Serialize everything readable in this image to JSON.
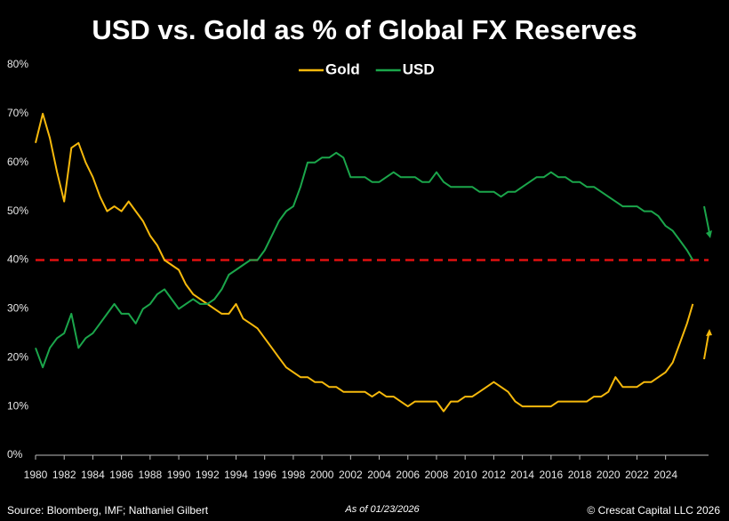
{
  "chart_data": {
    "type": "line",
    "title": "USD vs. Gold as % of Global FX Reserves",
    "x": [
      1980,
      1980.5,
      1981,
      1981.5,
      1982,
      1982.5,
      1983,
      1983.5,
      1984,
      1984.5,
      1985,
      1985.5,
      1986,
      1986.5,
      1987,
      1987.5,
      1988,
      1988.5,
      1989,
      1989.5,
      1990,
      1990.5,
      1991,
      1991.5,
      1992,
      1992.5,
      1993,
      1993.5,
      1994,
      1994.5,
      1995,
      1995.5,
      1996,
      1996.5,
      1997,
      1997.5,
      1998,
      1998.5,
      1999,
      1999.5,
      2000,
      2000.5,
      2001,
      2001.5,
      2002,
      2002.5,
      2003,
      2003.5,
      2004,
      2004.5,
      2005,
      2005.5,
      2006,
      2006.5,
      2007,
      2007.5,
      2008,
      2008.5,
      2009,
      2009.5,
      2010,
      2010.5,
      2011,
      2011.5,
      2012,
      2012.5,
      2013,
      2013.5,
      2014,
      2014.5,
      2015,
      2015.5,
      2016,
      2016.5,
      2017,
      2017.5,
      2018,
      2018.5,
      2019,
      2019.5,
      2020,
      2020.5,
      2021,
      2021.5,
      2022,
      2022.5,
      2023,
      2023.5,
      2024,
      2024.5,
      2025,
      2025.5,
      2025.9
    ],
    "series": [
      {
        "name": "Gold",
        "color": "#f6b90c",
        "values": [
          64,
          70,
          65,
          58,
          52,
          63,
          64,
          60,
          57,
          53,
          50,
          51,
          50,
          52,
          50,
          48,
          45,
          43,
          40,
          39,
          38,
          35,
          33,
          32,
          31,
          30,
          29,
          29,
          31,
          28,
          27,
          26,
          24,
          22,
          20,
          18,
          17,
          16,
          16,
          15,
          15,
          14,
          14,
          13,
          13,
          13,
          13,
          12,
          13,
          12,
          12,
          11,
          10,
          11,
          11,
          11,
          11,
          9,
          11,
          11,
          12,
          12,
          13,
          14,
          15,
          14,
          13,
          11,
          10,
          10,
          10,
          10,
          10,
          11,
          11,
          11,
          11,
          11,
          12,
          12,
          13,
          16,
          14,
          14,
          14,
          15,
          15,
          16,
          17,
          19,
          23,
          27,
          31
        ]
      },
      {
        "name": "USD",
        "color": "#1ba64b",
        "values": [
          22,
          18,
          22,
          24,
          25,
          29,
          22,
          24,
          25,
          27,
          29,
          31,
          29,
          29,
          27,
          30,
          31,
          33,
          34,
          32,
          30,
          31,
          32,
          31,
          31,
          32,
          34,
          37,
          38,
          39,
          40,
          40,
          42,
          45,
          48,
          50,
          51,
          55,
          60,
          60,
          61,
          61,
          62,
          61,
          57,
          57,
          57,
          56,
          56,
          57,
          58,
          57,
          57,
          57,
          56,
          56,
          58,
          56,
          55,
          55,
          55,
          55,
          54,
          54,
          54,
          53,
          54,
          54,
          55,
          56,
          57,
          57,
          58,
          57,
          57,
          56,
          56,
          55,
          55,
          54,
          53,
          52,
          51,
          51,
          51,
          50,
          50,
          49,
          47,
          46,
          44,
          42,
          40
        ]
      }
    ],
    "xlim": [
      1980,
      2027
    ],
    "xticks": [
      1980,
      1982,
      1984,
      1986,
      1988,
      1990,
      1992,
      1994,
      1996,
      1998,
      2000,
      2002,
      2004,
      2006,
      2008,
      2010,
      2012,
      2014,
      2016,
      2018,
      2020,
      2022,
      2024
    ],
    "ylim": [
      0,
      80
    ],
    "yticks": [
      {
        "value": 0,
        "label": "0%"
      },
      {
        "value": 10,
        "label": "10%"
      },
      {
        "value": 20,
        "label": "20%"
      },
      {
        "value": 30,
        "label": "30%"
      },
      {
        "value": 40,
        "label": "40%"
      },
      {
        "value": 50,
        "label": "50%"
      },
      {
        "value": 60,
        "label": "60%"
      },
      {
        "value": 70,
        "label": "70%"
      },
      {
        "value": 80,
        "label": "80%"
      }
    ],
    "reference_line": {
      "value": 40,
      "color": "#e01010"
    },
    "source": "Source: Bloomberg, IMF; Nathaniel Gilbert",
    "date_note": "As of 01/23/2026",
    "copyright": "© Crescat Capital LLC 2026"
  }
}
